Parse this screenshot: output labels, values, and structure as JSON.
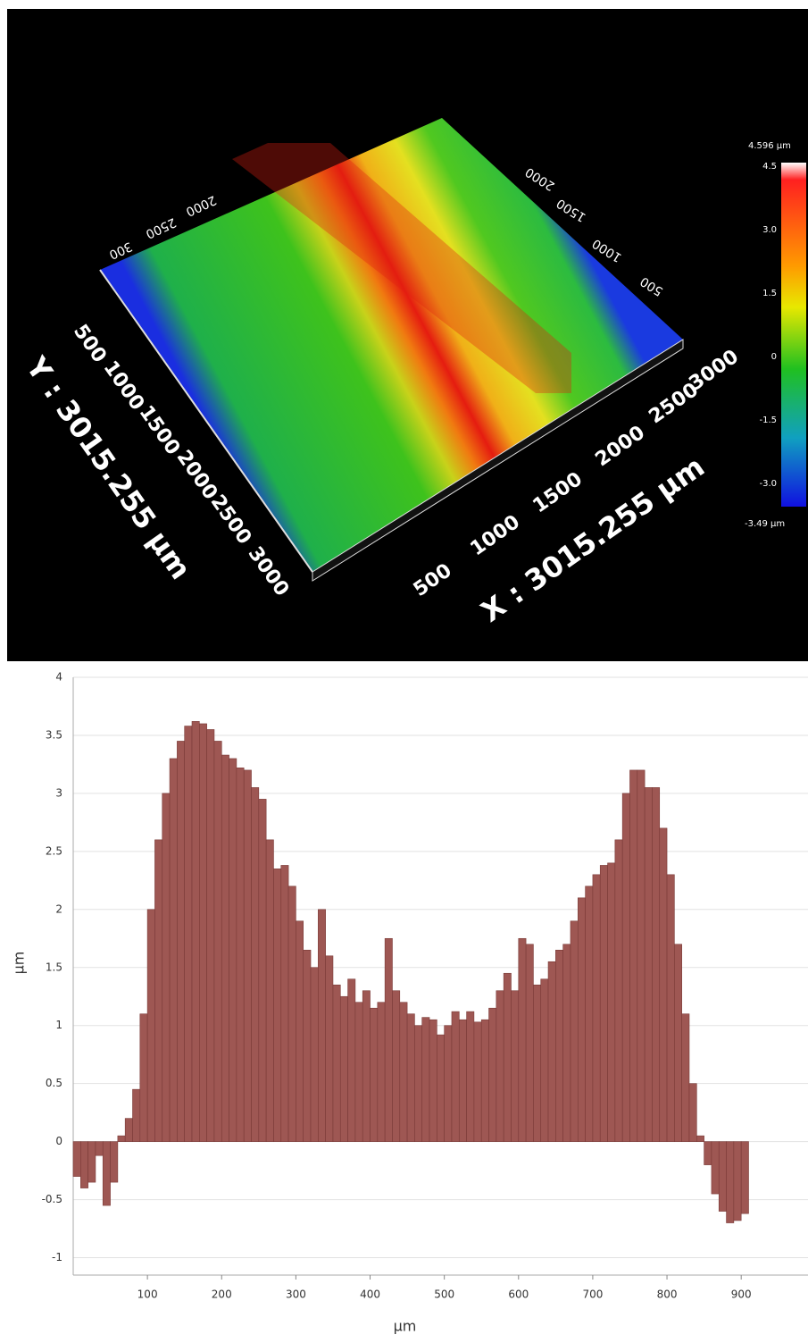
{
  "surface_view": {
    "x_axis": {
      "title": "X : 3015.255 µm",
      "ticks": [
        "500",
        "1000",
        "1500",
        "2000",
        "2500",
        "3000"
      ]
    },
    "y_axis": {
      "title": "Y : 3015.255 µm",
      "ticks": [
        "500",
        "1000",
        "1500",
        "2000",
        "2500",
        "3000"
      ]
    },
    "back_x_ticks": [
      "500",
      "1000",
      "1500",
      "2000"
    ],
    "back_y_ticks": [
      "2000",
      "2500",
      "300"
    ],
    "colorbar": {
      "max_label": "4.596 µm",
      "min_label": "-3.49 µm",
      "ticks": [
        "4.5",
        "3.0",
        "1.5",
        "0",
        "-1.5",
        "-3.0"
      ]
    }
  },
  "chart_data": {
    "type": "bar",
    "x_label": "µm",
    "y_label": "µm",
    "color": "#9e5753",
    "grid": true,
    "x": [
      5,
      15,
      25,
      35,
      45,
      55,
      65,
      75,
      85,
      95,
      105,
      115,
      125,
      135,
      145,
      155,
      165,
      175,
      185,
      195,
      205,
      215,
      225,
      235,
      245,
      255,
      265,
      275,
      285,
      295,
      305,
      315,
      325,
      335,
      345,
      355,
      365,
      375,
      385,
      395,
      405,
      415,
      425,
      435,
      445,
      455,
      465,
      475,
      485,
      495,
      505,
      515,
      525,
      535,
      545,
      555,
      565,
      575,
      585,
      595,
      605,
      615,
      625,
      635,
      645,
      655,
      665,
      675,
      685,
      695,
      705,
      715,
      725,
      735,
      745,
      755,
      765,
      775,
      785,
      795,
      805,
      815,
      825,
      835,
      845,
      855,
      865,
      875,
      885,
      895,
      905
    ],
    "values": [
      -0.3,
      -0.4,
      -0.35,
      -0.12,
      -0.55,
      -0.35,
      0.05,
      0.2,
      0.45,
      1.1,
      2.0,
      2.6,
      3.0,
      3.3,
      3.45,
      3.58,
      3.62,
      3.6,
      3.55,
      3.45,
      3.33,
      3.3,
      3.22,
      3.2,
      3.05,
      2.95,
      2.6,
      2.35,
      2.38,
      2.2,
      1.9,
      1.65,
      1.5,
      2.0,
      1.6,
      1.35,
      1.25,
      1.4,
      1.2,
      1.3,
      1.15,
      1.2,
      1.75,
      1.3,
      1.2,
      1.1,
      1.0,
      1.07,
      1.05,
      0.92,
      1.0,
      1.12,
      1.05,
      1.12,
      1.03,
      1.05,
      1.15,
      1.3,
      1.45,
      1.3,
      1.75,
      1.7,
      1.35,
      1.4,
      1.55,
      1.65,
      1.7,
      1.9,
      2.1,
      2.2,
      2.3,
      2.38,
      2.4,
      2.6,
      3.0,
      3.2,
      3.2,
      3.05,
      3.05,
      2.7,
      2.3,
      1.7,
      1.1,
      0.5,
      0.05,
      -0.2,
      -0.45,
      -0.6,
      -0.7,
      -0.68,
      -0.62
    ],
    "xlim": [
      0,
      990
    ],
    "ylim": [
      -1.15,
      4
    ],
    "xticks": [
      100,
      200,
      300,
      400,
      500,
      600,
      700,
      800,
      900
    ],
    "yticks": [
      -1,
      -0.5,
      0,
      0.5,
      1,
      1.5,
      2,
      2.5,
      3,
      3.5,
      4
    ]
  }
}
